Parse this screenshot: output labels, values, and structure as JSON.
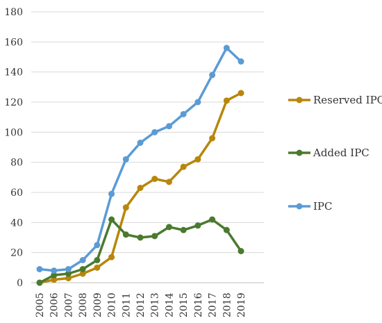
{
  "chart_data": {
    "type": "line",
    "title": "",
    "xlabel": "",
    "ylabel": "",
    "x": [
      "2005",
      "2006",
      "2007",
      "2008",
      "2009",
      "2010",
      "2011",
      "2012",
      "2013",
      "2014",
      "2015",
      "2016",
      "2017",
      "2018",
      "2019"
    ],
    "ylim": [
      0,
      180
    ],
    "yticks": [
      0,
      20,
      40,
      60,
      80,
      100,
      120,
      140,
      160,
      180
    ],
    "grid": "horizontal",
    "legend_position": "right",
    "series": [
      {
        "name": "Reserved IPC",
        "color": "#B8860B",
        "values": [
          0,
          2,
          3,
          6,
          10,
          17,
          50,
          63,
          69,
          67,
          77,
          82,
          96,
          121,
          126
        ]
      },
      {
        "name": "Added IPC",
        "color": "#4A7A2E",
        "values": [
          0,
          5,
          6,
          9,
          15,
          42,
          32,
          30,
          31,
          37,
          35,
          38,
          42,
          35,
          21
        ]
      },
      {
        "name": "IPC",
        "color": "#5B9BD5",
        "values": [
          9,
          8,
          9,
          15,
          25,
          59,
          82,
          93,
          100,
          104,
          112,
          120,
          138,
          156,
          147
        ]
      }
    ]
  }
}
